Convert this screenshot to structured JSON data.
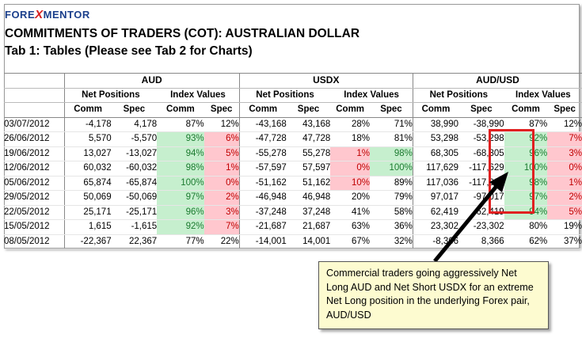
{
  "logo": {
    "part1": "FORE",
    "part2": "X",
    "part3": "MENTOR"
  },
  "title": "COMMITMENTS OF TRADERS (COT): AUSTRALIAN DOLLAR",
  "subtitle": "Tab 1: Tables (Please see Tab 2 for Charts)",
  "groups": [
    "AUD",
    "USDX",
    "AUD/USD"
  ],
  "subgroups": [
    "Net Positions",
    "Index Values"
  ],
  "cols": [
    "Comm",
    "Spec"
  ],
  "rows": [
    {
      "date": "03/07/2012",
      "v": [
        "-4,178",
        "4,178",
        "87%",
        "12%",
        "-43,168",
        "43,168",
        "28%",
        "71%",
        "38,990",
        "-38,990",
        "87%",
        "12%"
      ],
      "c": [
        "",
        "",
        "",
        "",
        "",
        "",
        "",
        "",
        "",
        "",
        "",
        ""
      ]
    },
    {
      "date": "26/06/2012",
      "v": [
        "5,570",
        "-5,570",
        "93%",
        "6%",
        "-47,728",
        "47,728",
        "18%",
        "81%",
        "53,298",
        "-53,298",
        "92%",
        "7%"
      ],
      "c": [
        "",
        "",
        "g",
        "r",
        "",
        "",
        "",
        "",
        "",
        "",
        "g",
        "r"
      ]
    },
    {
      "date": "19/06/2012",
      "v": [
        "13,027",
        "-13,027",
        "94%",
        "5%",
        "-55,278",
        "55,278",
        "1%",
        "98%",
        "68,305",
        "-68,305",
        "96%",
        "3%"
      ],
      "c": [
        "",
        "",
        "g",
        "r",
        "",
        "",
        "r",
        "g",
        "",
        "",
        "g",
        "r"
      ]
    },
    {
      "date": "12/06/2012",
      "v": [
        "60,032",
        "-60,032",
        "98%",
        "1%",
        "-57,597",
        "57,597",
        "0%",
        "100%",
        "117,629",
        "-117,629",
        "100%",
        "0%"
      ],
      "c": [
        "",
        "",
        "g",
        "r",
        "",
        "",
        "r",
        "g",
        "",
        "",
        "g",
        "r"
      ]
    },
    {
      "date": "05/06/2012",
      "v": [
        "65,874",
        "-65,874",
        "100%",
        "0%",
        "-51,162",
        "51,162",
        "10%",
        "89%",
        "117,036",
        "-117,036",
        "98%",
        "1%"
      ],
      "c": [
        "",
        "",
        "g",
        "r",
        "",
        "",
        "r",
        "",
        "",
        "",
        "g",
        "r"
      ]
    },
    {
      "date": "29/05/2012",
      "v": [
        "50,069",
        "-50,069",
        "97%",
        "2%",
        "-46,948",
        "46,948",
        "20%",
        "79%",
        "97,017",
        "-97,017",
        "97%",
        "2%"
      ],
      "c": [
        "",
        "",
        "g",
        "r",
        "",
        "",
        "",
        "",
        "",
        "",
        "g",
        "r"
      ]
    },
    {
      "date": "22/05/2012",
      "v": [
        "25,171",
        "-25,171",
        "96%",
        "3%",
        "-37,248",
        "37,248",
        "41%",
        "58%",
        "62,419",
        "-62,419",
        "94%",
        "5%"
      ],
      "c": [
        "",
        "",
        "g",
        "r",
        "",
        "",
        "",
        "",
        "",
        "",
        "g",
        "r"
      ]
    },
    {
      "date": "15/05/2012",
      "v": [
        "1,615",
        "-1,615",
        "92%",
        "7%",
        "-21,687",
        "21,687",
        "63%",
        "36%",
        "23,302",
        "-23,302",
        "80%",
        "19%"
      ],
      "c": [
        "",
        "",
        "g",
        "r",
        "",
        "",
        "",
        "",
        "",
        "",
        "",
        ""
      ]
    },
    {
      "date": "08/05/2012",
      "v": [
        "-22,367",
        "22,367",
        "77%",
        "22%",
        "-14,001",
        "14,001",
        "67%",
        "32%",
        "-8,366",
        "8,366",
        "62%",
        "37%"
      ],
      "c": [
        "",
        "",
        "",
        "",
        "",
        "",
        "",
        "",
        "",
        "",
        "",
        ""
      ]
    }
  ],
  "colors": {
    "green_bg": "#c6efce",
    "red_bg": "#ffc7ce",
    "highlight": "#e02020",
    "callout_bg": "#fdfbd0"
  },
  "callout": "Commercial traders going aggressively Net Long AUD and Net Short USDX for an extreme Net Long position in the underlying Forex pair, AUD/USD"
}
